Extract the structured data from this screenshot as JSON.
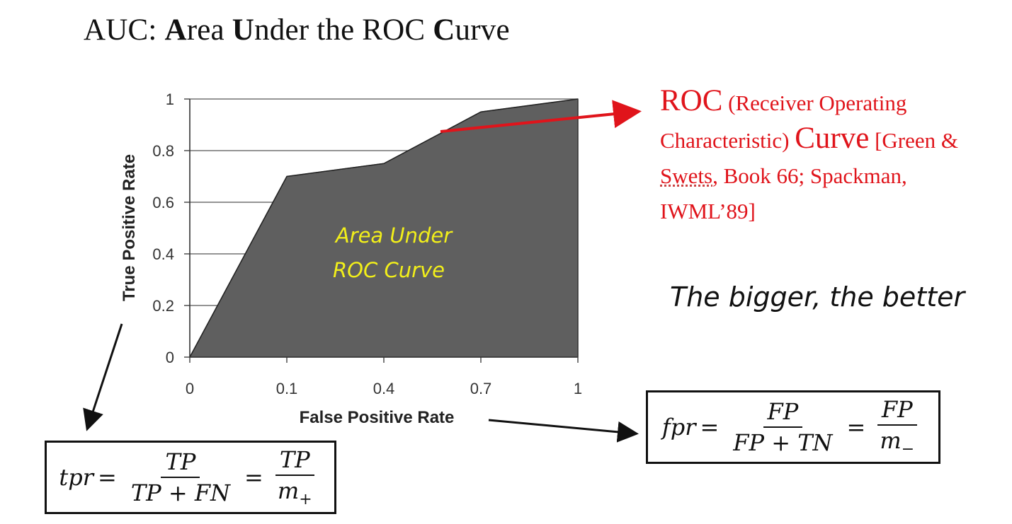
{
  "title": {
    "prefix": "AUC: ",
    "a_bold": "A",
    "a_rest": "rea ",
    "u_bold": "U",
    "u_rest": "nder the ROC ",
    "c_bold": "C",
    "c_rest": "urve"
  },
  "chart_data": {
    "type": "area",
    "x": [
      0,
      0.1,
      0.4,
      0.7,
      1
    ],
    "y": [
      0,
      0.7,
      0.75,
      0.95,
      1
    ],
    "x_tick_labels": [
      "0",
      "0.1",
      "0.4",
      "0.7",
      "1"
    ],
    "y_ticks": [
      0,
      0.2,
      0.4,
      0.6,
      0.8,
      1
    ],
    "y_tick_labels": [
      "0",
      "0.2",
      "0.4",
      "0.6",
      "0.8",
      "1"
    ],
    "xlabel": "False Positive Rate",
    "ylabel": "True Positive Rate",
    "ylim": [
      0,
      1
    ],
    "grid": "horizontal",
    "area_label_line1": "Area Under",
    "area_label_line2": "ROC Curve",
    "colors": {
      "area": "#5f5f5f",
      "area_label": "#f2ef1a",
      "axis": "#333333",
      "pointer": "#e0141b"
    }
  },
  "roc_note": {
    "roc": "ROC",
    "paren": " (Receiver Operating Characteristic) ",
    "curve": "Curve",
    "ref1": " [Green & ",
    "ref_swets": "Swets",
    "ref2": ", Book 66; Spackman, IWML’89]"
  },
  "slogan": "The bigger, the better",
  "tpr_formula": {
    "lhs": "tpr",
    "num1": "TP",
    "den1": "TP + FN",
    "num2": "TP",
    "den2_var": "m",
    "den2_sub": "+"
  },
  "fpr_formula": {
    "lhs": "fpr",
    "num1": "FP",
    "den1": "FP + TN",
    "num2": "FP",
    "den2_var": "m",
    "den2_sub": "−"
  }
}
